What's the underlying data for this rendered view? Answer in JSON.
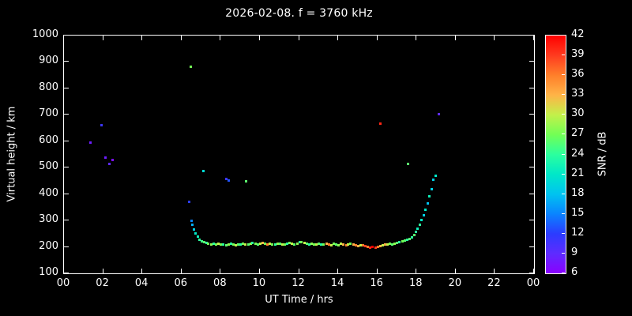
{
  "title": "2026-02-08. f = 3760 kHz",
  "chart_data": {
    "type": "scatter",
    "xlabel": "UT Time / hrs",
    "ylabel": "Virtual height / km",
    "xlim": [
      0,
      24
    ],
    "ylim": [
      100,
      1000
    ],
    "x_ticks": {
      "values": [
        0,
        2,
        4,
        6,
        8,
        10,
        12,
        14,
        16,
        18,
        20,
        22,
        24
      ],
      "labels": [
        "00",
        "02",
        "04",
        "06",
        "08",
        "10",
        "12",
        "14",
        "16",
        "18",
        "20",
        "22",
        "00"
      ]
    },
    "y_ticks": [
      100,
      200,
      300,
      400,
      500,
      600,
      700,
      800,
      900,
      1000
    ],
    "colorbar": {
      "label": "SNR / dB",
      "min": 6,
      "max": 42,
      "ticks": [
        6,
        9,
        12,
        15,
        18,
        21,
        24,
        27,
        30,
        33,
        36,
        39,
        42
      ],
      "stops": [
        {
          "v": 6,
          "c": "#8a00ff"
        },
        {
          "v": 9,
          "c": "#5e2bff"
        },
        {
          "v": 12,
          "c": "#2b3cff"
        },
        {
          "v": 15,
          "c": "#0a84ff"
        },
        {
          "v": 18,
          "c": "#00c3f0"
        },
        {
          "v": 21,
          "c": "#00e8c8"
        },
        {
          "v": 24,
          "c": "#2bff9e"
        },
        {
          "v": 27,
          "c": "#72ff55"
        },
        {
          "v": 30,
          "c": "#c3f04a"
        },
        {
          "v": 33,
          "c": "#ffb347"
        },
        {
          "v": 36,
          "c": "#ff7f2a"
        },
        {
          "v": 39,
          "c": "#ff3b1f"
        },
        {
          "v": 42,
          "c": "#ff0000"
        }
      ]
    },
    "points": [
      [
        1.35,
        595,
        8
      ],
      [
        1.9,
        662,
        11
      ],
      [
        2.1,
        540,
        8
      ],
      [
        2.28,
        516,
        9
      ],
      [
        2.45,
        530,
        7
      ],
      [
        6.38,
        372,
        12
      ],
      [
        6.45,
        882,
        27
      ],
      [
        6.5,
        300,
        15
      ],
      [
        6.55,
        286,
        17
      ],
      [
        6.62,
        268,
        19
      ],
      [
        6.7,
        252,
        21
      ],
      [
        6.8,
        240,
        22
      ],
      [
        6.9,
        230,
        24
      ],
      [
        7.0,
        224,
        25
      ],
      [
        7.1,
        488,
        20
      ],
      [
        7.15,
        220,
        26
      ],
      [
        7.25,
        216,
        24
      ],
      [
        7.35,
        213,
        27
      ],
      [
        7.5,
        211,
        28
      ],
      [
        7.62,
        213,
        24
      ],
      [
        7.75,
        210,
        27
      ],
      [
        7.88,
        214,
        30
      ],
      [
        8.0,
        212,
        27
      ],
      [
        8.12,
        210,
        24
      ],
      [
        8.25,
        209,
        26
      ],
      [
        8.27,
        458,
        11
      ],
      [
        8.37,
        452,
        13
      ],
      [
        8.38,
        212,
        28
      ],
      [
        8.5,
        214,
        24
      ],
      [
        8.62,
        211,
        27
      ],
      [
        8.75,
        209,
        30
      ],
      [
        8.88,
        212,
        26
      ],
      [
        9.0,
        210,
        24
      ],
      [
        9.12,
        214,
        27
      ],
      [
        9.25,
        212,
        30
      ],
      [
        9.28,
        449,
        26
      ],
      [
        9.38,
        210,
        26
      ],
      [
        9.5,
        213,
        28
      ],
      [
        9.62,
        217,
        24
      ],
      [
        9.75,
        214,
        27
      ],
      [
        9.88,
        212,
        26
      ],
      [
        10.0,
        214,
        30
      ],
      [
        10.12,
        217,
        33
      ],
      [
        10.25,
        213,
        27
      ],
      [
        10.38,
        211,
        36
      ],
      [
        10.5,
        214,
        30
      ],
      [
        10.62,
        212,
        27
      ],
      [
        10.75,
        210,
        24
      ],
      [
        10.88,
        213,
        28
      ],
      [
        11.0,
        215,
        26
      ],
      [
        11.12,
        212,
        30
      ],
      [
        11.25,
        210,
        27
      ],
      [
        11.38,
        213,
        24
      ],
      [
        11.5,
        217,
        27
      ],
      [
        11.62,
        214,
        30
      ],
      [
        11.75,
        212,
        26
      ],
      [
        11.88,
        215,
        28
      ],
      [
        12.0,
        219,
        24
      ],
      [
        12.12,
        221,
        27
      ],
      [
        12.25,
        217,
        30
      ],
      [
        12.38,
        213,
        26
      ],
      [
        12.5,
        211,
        24
      ],
      [
        12.62,
        214,
        28
      ],
      [
        12.75,
        212,
        27
      ],
      [
        12.88,
        210,
        30
      ],
      [
        13.0,
        213,
        26
      ],
      [
        13.12,
        211,
        24
      ],
      [
        13.25,
        210,
        27
      ],
      [
        13.38,
        213,
        33
      ],
      [
        13.5,
        211,
        36
      ],
      [
        13.62,
        209,
        30
      ],
      [
        13.75,
        213,
        27
      ],
      [
        13.88,
        211,
        26
      ],
      [
        14.0,
        209,
        28
      ],
      [
        14.12,
        213,
        30
      ],
      [
        14.25,
        211,
        33
      ],
      [
        14.38,
        208,
        36
      ],
      [
        14.5,
        211,
        30
      ],
      [
        14.62,
        214,
        27
      ],
      [
        14.75,
        210,
        33
      ],
      [
        14.88,
        207,
        36
      ],
      [
        15.0,
        205,
        33
      ],
      [
        15.12,
        207,
        30
      ],
      [
        15.25,
        209,
        36
      ],
      [
        15.38,
        205,
        39
      ],
      [
        15.5,
        202,
        36
      ],
      [
        15.62,
        200,
        40
      ],
      [
        15.75,
        202,
        42
      ],
      [
        15.88,
        200,
        39
      ],
      [
        16.0,
        202,
        36
      ],
      [
        16.12,
        205,
        33
      ],
      [
        16.15,
        668,
        40
      ],
      [
        16.25,
        207,
        30
      ],
      [
        16.38,
        210,
        33
      ],
      [
        16.5,
        212,
        30
      ],
      [
        16.62,
        214,
        27
      ],
      [
        16.75,
        212,
        26
      ],
      [
        16.88,
        215,
        28
      ],
      [
        17.0,
        218,
        26
      ],
      [
        17.12,
        220,
        24
      ],
      [
        17.25,
        222,
        27
      ],
      [
        17.38,
        225,
        26
      ],
      [
        17.5,
        228,
        24
      ],
      [
        17.55,
        515,
        26
      ],
      [
        17.62,
        232,
        26
      ],
      [
        17.75,
        238,
        24
      ],
      [
        17.85,
        248,
        26
      ],
      [
        17.95,
        258,
        24
      ],
      [
        18.05,
        270,
        22
      ],
      [
        18.15,
        285,
        24
      ],
      [
        18.25,
        302,
        21
      ],
      [
        18.35,
        322,
        19
      ],
      [
        18.45,
        342,
        21
      ],
      [
        18.55,
        365,
        18
      ],
      [
        18.65,
        392,
        22
      ],
      [
        18.75,
        420,
        19
      ],
      [
        18.85,
        455,
        19
      ],
      [
        18.95,
        470,
        21
      ],
      [
        19.1,
        704,
        9
      ]
    ]
  }
}
